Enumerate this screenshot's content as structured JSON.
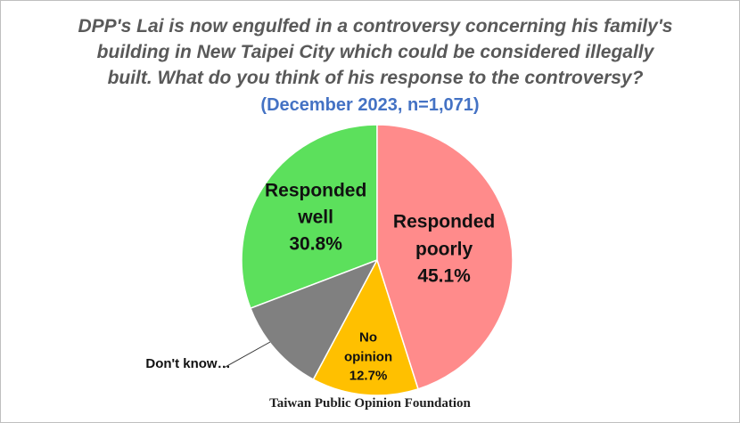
{
  "chart_data": {
    "type": "pie",
    "title": "DPP's Lai is now engulfed in a controversy concerning his family's building in New Taipei City which could be considered illegally built. What do you think of his response to the controversy?",
    "subtitle": "(December 2023, n=1,071)",
    "source": "Taiwan Public Opinion Foundation",
    "categories": [
      "Responded poorly",
      "No opinion",
      "Don't know…",
      "Responded well"
    ],
    "values": [
      45.1,
      12.7,
      11.4,
      30.8
    ],
    "value_labels": [
      "45.1%",
      "12.7%",
      null,
      "30.8%"
    ],
    "colors": [
      "#ff8b8b",
      "#ffc000",
      "#808080",
      "#5ce05c"
    ]
  }
}
